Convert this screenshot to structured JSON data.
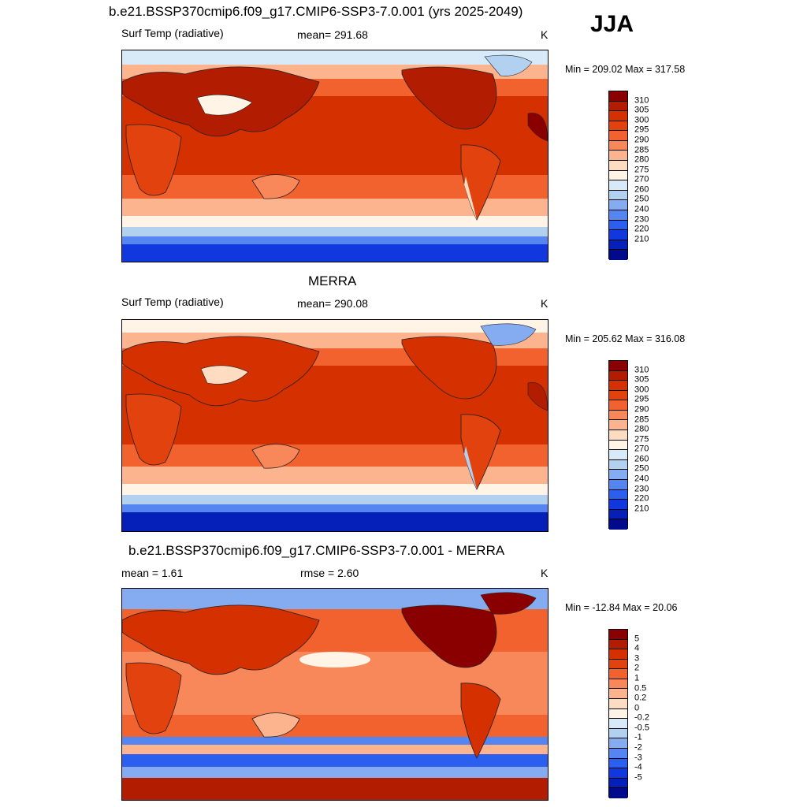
{
  "season": "JJA",
  "panels": [
    {
      "title": "b.e21.BSSP370cmip6.f09_g17.CMIP6-SSP3-7.0.001 (yrs 2025-2049)",
      "left_label": "Surf Temp (radiative)",
      "center_label": "mean= 291.68",
      "units": "K",
      "minmax": "Min = 209.02 Max = 317.58",
      "colorbar_labels": [
        "310",
        "305",
        "300",
        "295",
        "290",
        "285",
        "280",
        "275",
        "270",
        "260",
        "250",
        "240",
        "230",
        "220",
        "210"
      ],
      "colors": [
        "#8a0000",
        "#b21c00",
        "#d43000",
        "#e2420d",
        "#f2622e",
        "#f8875a",
        "#fcb48e",
        "#fedcc2",
        "#fff4e6",
        "#d8eaf8",
        "#b2d0f0",
        "#85acf0",
        "#5585f0",
        "#2a5ff0",
        "#1038de",
        "#0520b8",
        "#000a8a"
      ]
    },
    {
      "title": "MERRA",
      "left_label": "Surf Temp (radiative)",
      "center_label": "mean= 290.08",
      "units": "K",
      "minmax": "Min = 205.62 Max = 316.08",
      "colorbar_labels": [
        "310",
        "305",
        "300",
        "295",
        "290",
        "285",
        "280",
        "275",
        "270",
        "260",
        "250",
        "240",
        "230",
        "220",
        "210"
      ],
      "colors": [
        "#8a0000",
        "#b21c00",
        "#d43000",
        "#e2420d",
        "#f2622e",
        "#f8875a",
        "#fcb48e",
        "#fedcc2",
        "#fff4e6",
        "#d8eaf8",
        "#b2d0f0",
        "#85acf0",
        "#5585f0",
        "#2a5ff0",
        "#1038de",
        "#0520b8",
        "#000a8a"
      ]
    },
    {
      "title": "b.e21.BSSP370cmip6.f09_g17.CMIP6-SSP3-7.0.001 - MERRA",
      "left_label": "mean =   1.61",
      "center_label": "rmse =   2.60",
      "units": "K",
      "minmax": "Min = -12.84 Max =  20.06",
      "colorbar_labels": [
        "5",
        "4",
        "3",
        "2",
        "1",
        "0.5",
        "0.2",
        "0",
        "-0.2",
        "-0.5",
        "-1",
        "-2",
        "-3",
        "-4",
        "-5"
      ],
      "colors": [
        "#8a0000",
        "#b21c00",
        "#d43000",
        "#e2420d",
        "#f2622e",
        "#f8875a",
        "#fcb48e",
        "#fedcc2",
        "#fff4e6",
        "#d8eaf8",
        "#b2d0f0",
        "#85acf0",
        "#5585f0",
        "#2a5ff0",
        "#1038de",
        "#0520b8",
        "#000a8a"
      ]
    }
  ]
}
